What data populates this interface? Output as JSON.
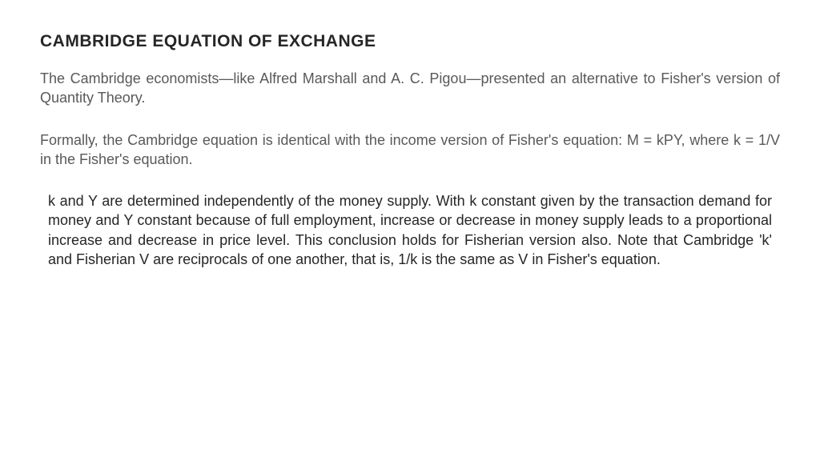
{
  "title": {
    "text": "CAMBRIDGE EQUATION OF EXCHANGE",
    "color": "#262626",
    "fontsize": 21
  },
  "para1": {
    "text": "The Cambridge economists—like Alfred Marshall and A. C. Pigou—presented an alternative to Fisher's version of Quantity Theory.",
    "color": "#595959",
    "fontsize": 18,
    "lineheight": 1.35
  },
  "para2": {
    "text": "Formally, the Cambridge equation is identical with the income version of Fisher's equation: M = kPY, where k = 1/V in the Fisher's equation.",
    "color": "#595959",
    "fontsize": 18,
    "lineheight": 1.35
  },
  "para3": {
    "text": "k and Y are determined independently of the money supply. With k constant given by the transaction demand for money and Y constant because of full employment, increase or decrease in money supply leads to a proportional increase and decrease in price level. This conclusion holds for Fisherian version also. Note that Cambridge 'k' and Fisherian V are reciprocals of one another, that is, 1/k is the same as V in Fisher's equation.",
    "color": "#262626",
    "fontsize": 18,
    "lineheight": 1.35
  },
  "background_color": "#ffffff"
}
